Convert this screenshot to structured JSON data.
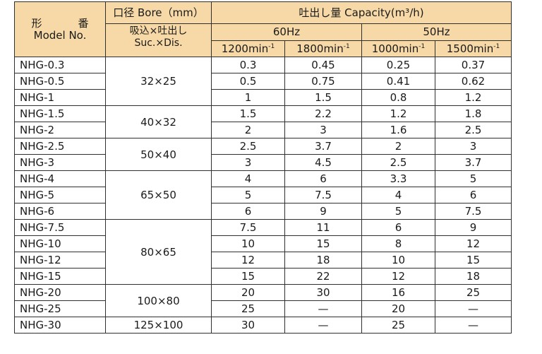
{
  "header": {
    "model_jp": "形　番",
    "model_en": "Model No.",
    "bore_title": "口径 Bore（mm）",
    "bore_sub_jp": "吸込×吐出し",
    "bore_sub_en": "Suc.×Dis.",
    "capacity_title": "吐出し量 Capacity(m³/h)",
    "freq_60": "60Hz",
    "freq_50": "50Hz",
    "speeds": [
      {
        "base": "1200min",
        "sup": "-1"
      },
      {
        "base": "1800min",
        "sup": "-1"
      },
      {
        "base": "1000min",
        "sup": "-1"
      },
      {
        "base": "1500min",
        "sup": "-1"
      }
    ]
  },
  "rows": [
    {
      "model": "NHG-0.3",
      "bore": "32×25",
      "span": 3,
      "values": [
        "0.3",
        "0.45",
        "0.25",
        "0.37"
      ]
    },
    {
      "model": "NHG-0.5",
      "values": [
        "0.5",
        "0.75",
        "0.41",
        "0.62"
      ]
    },
    {
      "model": "NHG-1",
      "values": [
        "1",
        "1.5",
        "0.8",
        "1.2"
      ]
    },
    {
      "model": "NHG-1.5",
      "bore": "40×32",
      "span": 2,
      "values": [
        "1.5",
        "2.2",
        "1.2",
        "1.8"
      ]
    },
    {
      "model": "NHG-2",
      "values": [
        "2",
        "3",
        "1.6",
        "2.5"
      ]
    },
    {
      "model": "NHG-2.5",
      "bore": "50×40",
      "span": 2,
      "values": [
        "2.5",
        "3.7",
        "2",
        "3"
      ]
    },
    {
      "model": "NHG-3",
      "values": [
        "3",
        "4.5",
        "2.5",
        "3.7"
      ]
    },
    {
      "model": "NHG-4",
      "bore": "65×50",
      "span": 3,
      "values": [
        "4",
        "6",
        "3.3",
        "5"
      ]
    },
    {
      "model": "NHG-5",
      "values": [
        "5",
        "7.5",
        "4",
        "6"
      ]
    },
    {
      "model": "NHG-6",
      "values": [
        "6",
        "9",
        "5",
        "7.5"
      ]
    },
    {
      "model": "NHG-7.5",
      "bore": "80×65",
      "span": 4,
      "values": [
        "7.5",
        "11",
        "6",
        "9"
      ]
    },
    {
      "model": "NHG-10",
      "values": [
        "10",
        "15",
        "8",
        "12"
      ]
    },
    {
      "model": "NHG-12",
      "values": [
        "12",
        "18",
        "10",
        "15"
      ]
    },
    {
      "model": "NHG-15",
      "values": [
        "15",
        "22",
        "12",
        "18"
      ]
    },
    {
      "model": "NHG-20",
      "bore": "100×80",
      "span": 2,
      "values": [
        "20",
        "30",
        "16",
        "25"
      ]
    },
    {
      "model": "NHG-25",
      "values": [
        "25",
        "—",
        "20",
        "—"
      ]
    },
    {
      "model": "NHG-30",
      "bore": "125×100",
      "span": 1,
      "values": [
        "30",
        "—",
        "25",
        "—"
      ]
    }
  ]
}
